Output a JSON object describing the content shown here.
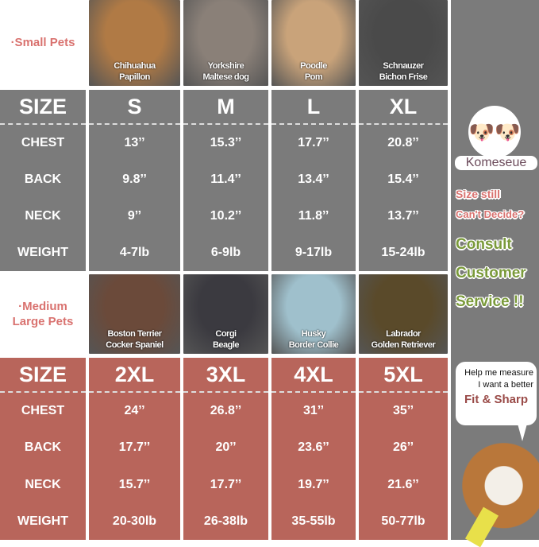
{
  "small": {
    "label": "·Small Pets",
    "breeds": [
      "Chihuahua\nPapillon",
      "Yorkshire\nMaltese dog",
      "Poodle\nPom",
      "Schnauzer\nBichon Frise"
    ],
    "header": [
      "SIZE",
      "S",
      "M",
      "L",
      "XL"
    ],
    "rows": [
      [
        "CHEST",
        "13’’",
        "15.3’’",
        "17.7’’",
        "20.8’’"
      ],
      [
        "BACK",
        "9.8’’",
        "11.4’’",
        "13.4’’",
        "15.4’’"
      ],
      [
        "NECK",
        "9’’",
        "10.2’’",
        "11.8’’",
        "13.7’’"
      ],
      [
        "WEIGHT",
        "4-7lb",
        "6-9lb",
        "9-17lb",
        "15-24lb"
      ]
    ]
  },
  "large": {
    "label": "·Medium\nLarge Pets",
    "breeds": [
      "Boston Terrier\nCocker Spaniel",
      "Corgi\nBeagle",
      "Husky\nBorder Collie",
      "Labrador\nGolden Retriever"
    ],
    "header": [
      "SIZE",
      "2XL",
      "3XL",
      "4XL",
      "5XL"
    ],
    "rows": [
      [
        "CHEST",
        "24’’",
        "26.8’’",
        "31’’",
        "35’’"
      ],
      [
        "BACK",
        "17.7’’",
        "20’’",
        "23.6’’",
        "26’’"
      ],
      [
        "NECK",
        "15.7’’",
        "17.7’’",
        "19.7’’",
        "21.6’’"
      ],
      [
        "WEIGHT",
        "20-30lb",
        "26-38lb",
        "35-55lb",
        "50-77lb"
      ]
    ]
  },
  "side": {
    "brand": "Komeseue",
    "line1": "Size still",
    "line2": "Can't Decide?",
    "consult": [
      "Consult",
      "Customer",
      "Service !!"
    ],
    "bubble1": "Help me measure",
    "bubble2": "I want a better",
    "bubble3": "Fit & Sharp"
  },
  "colors": {
    "grey": "#7b7b7b",
    "red": "#b8655b",
    "pink": "#d9726f",
    "green": "#7a9a3a"
  }
}
